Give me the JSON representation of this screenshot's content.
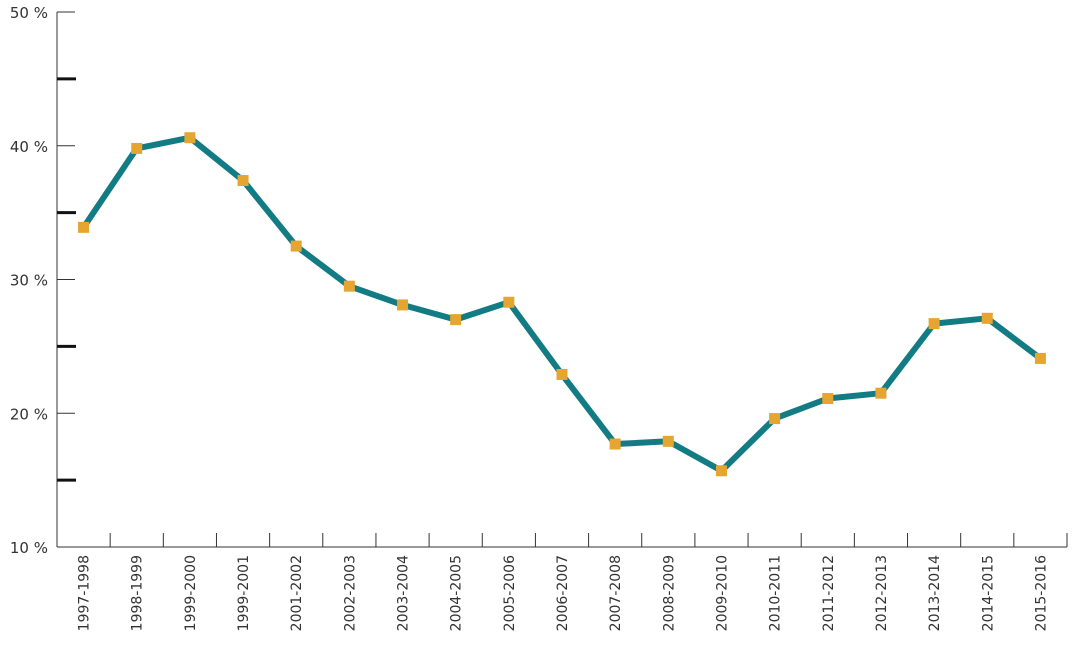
{
  "chart_data": {
    "type": "line",
    "categories": [
      "1997-1998",
      "1998-1999",
      "1999-2000",
      "1999-2001",
      "2001-2002",
      "2002-2003",
      "2003-2004",
      "2004-2005",
      "2005-2006",
      "2006-2007",
      "2007-2008",
      "2008-2009",
      "2009-2010",
      "2010-2011",
      "2011-2012",
      "2012-2013",
      "2013-2014",
      "2014-2015",
      "2015-2016"
    ],
    "series": [
      {
        "values": [
          33.9,
          39.8,
          40.6,
          37.4,
          32.5,
          29.5,
          28.1,
          27.0,
          28.3,
          22.9,
          17.7,
          17.9,
          15.7,
          19.6,
          21.1,
          21.5,
          26.7,
          27.1,
          24.1
        ]
      }
    ],
    "y_ticks": [
      {
        "value": 50,
        "label": "50 %"
      },
      {
        "value": 40,
        "label": "40 %"
      },
      {
        "value": 30,
        "label": "30 %"
      },
      {
        "value": 20,
        "label": "20 %"
      },
      {
        "value": 10,
        "label": "10 %"
      }
    ],
    "ylim": [
      10,
      50
    ],
    "title": "",
    "xlabel": "",
    "ylabel": "",
    "grid": false,
    "legend": "none",
    "colors": {
      "line": "#137b83",
      "marker": "#e6a430",
      "axis": "#333333"
    }
  }
}
